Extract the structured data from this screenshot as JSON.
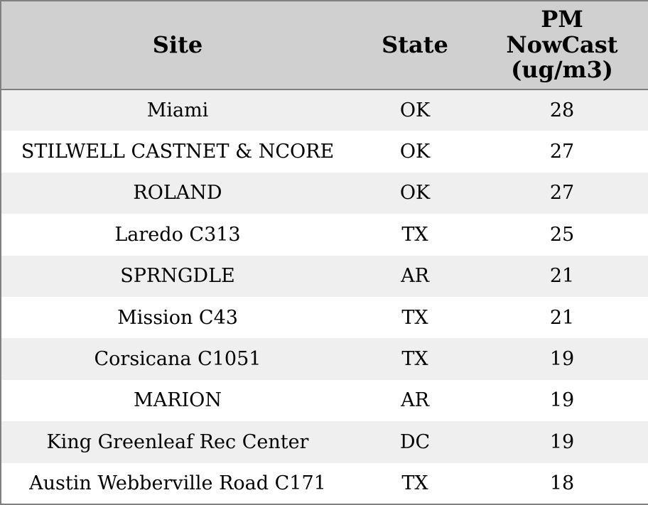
{
  "table": {
    "columns": [
      {
        "label": "Site"
      },
      {
        "label": "State"
      },
      {
        "label": "PM NowCast (ug/m3)",
        "lines": [
          "PM",
          "NowCast",
          "(ug/m3)"
        ]
      }
    ],
    "rows": [
      {
        "site": "Miami",
        "state": "OK",
        "pm_nowcast": "28"
      },
      {
        "site": "STILWELL CASTNET & NCORE",
        "state": "OK",
        "pm_nowcast": "27"
      },
      {
        "site": "ROLAND",
        "state": "OK",
        "pm_nowcast": "27"
      },
      {
        "site": "Laredo C313",
        "state": "TX",
        "pm_nowcast": "25"
      },
      {
        "site": "SPRNGDLE",
        "state": "AR",
        "pm_nowcast": "21"
      },
      {
        "site": "Mission C43",
        "state": "TX",
        "pm_nowcast": "21"
      },
      {
        "site": "Corsicana C1051",
        "state": "TX",
        "pm_nowcast": "19"
      },
      {
        "site": "MARION",
        "state": "AR",
        "pm_nowcast": "19"
      },
      {
        "site": "King Greenleaf Rec Center",
        "state": "DC",
        "pm_nowcast": "19"
      },
      {
        "site": "Austin Webberville Road C171",
        "state": "TX",
        "pm_nowcast": "18"
      }
    ]
  },
  "colors": {
    "header_bg": "#d0d0d0",
    "row_alt_bg": "#efefef",
    "row_bg": "#ffffff",
    "border": "#808080",
    "text": "#000000"
  }
}
